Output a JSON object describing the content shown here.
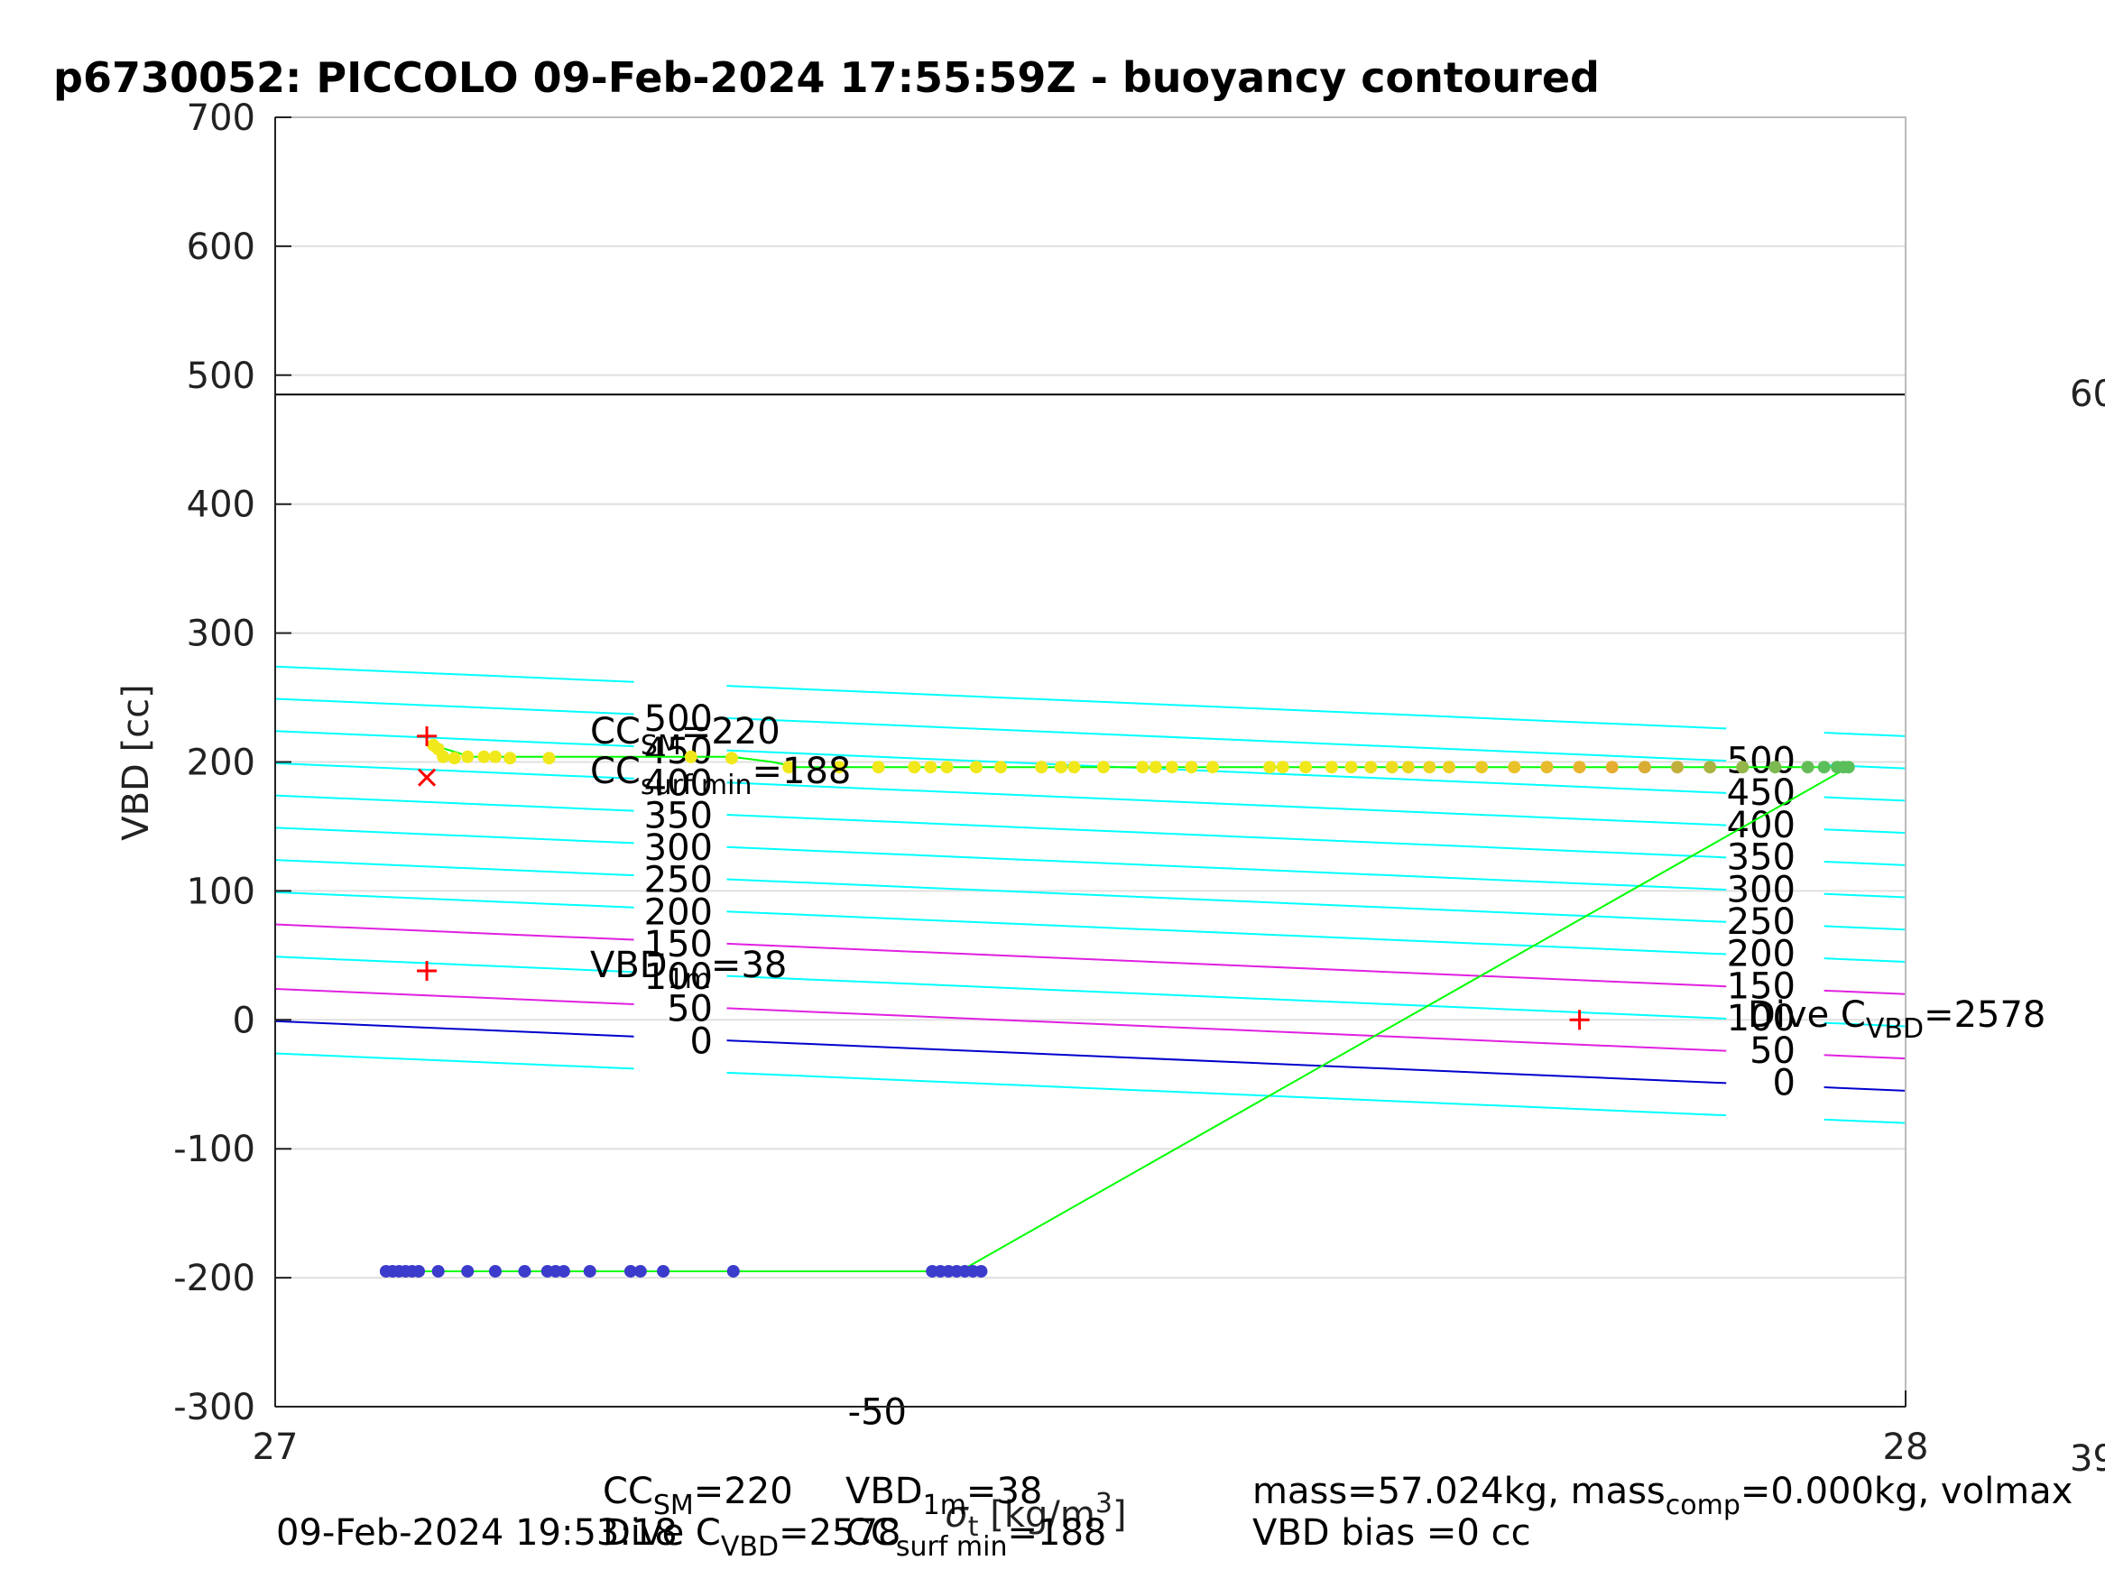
{
  "chart_data": {
    "type": "scatter",
    "title": "p6730052: PICCOLO 09-Feb-2024 17:55:59Z - buoyancy contoured",
    "ylabel": "VBD [cc]",
    "xlabel": {
      "pre": "σ",
      "sub": "t",
      "post": " [kg/m",
      "sup": "3",
      "end": "]"
    },
    "xlim": [
      27,
      28
    ],
    "ylim": [
      -300,
      700
    ],
    "xticks": [
      "27",
      "28"
    ],
    "yticks": [
      "-300",
      "-200",
      "-100",
      "0",
      "100",
      "200",
      "300",
      "400",
      "500",
      "600",
      "700"
    ],
    "grid": true,
    "colors": {
      "grid": "#e0e0e0",
      "contour": "#00ffff",
      "negative_contour": "#e020e0",
      "zero_contour": "#0000cc",
      "trace": "#00ff00",
      "marker": "#ff0000",
      "hline": "#000000"
    },
    "hline_vbd": 485,
    "contours": {
      "left_values": [
        550,
        500,
        450,
        400,
        350,
        300,
        250,
        200,
        150,
        100,
        50,
        0,
        -50
      ],
      "right_values": [
        500,
        450,
        400,
        350,
        300,
        250,
        200,
        150,
        100,
        50,
        0
      ],
      "left_labels": [
        "500",
        "450",
        "400",
        "350",
        "300",
        "250",
        "200",
        "150",
        "100",
        "50",
        "0",
        "-50"
      ],
      "right_labels": [
        "500",
        "450",
        "400",
        "350",
        "300",
        "250",
        "200",
        "150",
        "100",
        "50",
        "0"
      ]
    },
    "climb_points": {
      "x": [
        27.097,
        27.1,
        27.103,
        27.11,
        27.118,
        27.128,
        27.135,
        27.144,
        27.168,
        27.255,
        27.28,
        27.315,
        27.346,
        27.37,
        27.392,
        27.402,
        27.412,
        27.43,
        27.445,
        27.47,
        27.482,
        27.49,
        27.508,
        27.532,
        27.54,
        27.55,
        27.562,
        27.575,
        27.61,
        27.618,
        27.632,
        27.648,
        27.66,
        27.672,
        27.685,
        27.695,
        27.708,
        27.72,
        27.74,
        27.76,
        27.78,
        27.8,
        27.82,
        27.84,
        27.86,
        27.88,
        27.9,
        27.92,
        27.94,
        27.95,
        27.958,
        27.962,
        27.965
      ],
      "y": [
        213,
        210,
        204,
        203,
        204,
        204,
        204,
        203,
        203,
        204,
        203,
        196,
        196,
        196,
        196,
        196,
        196,
        196,
        196,
        196,
        196,
        196,
        196,
        196,
        196,
        196,
        196,
        196,
        196,
        196,
        196,
        196,
        196,
        196,
        196,
        196,
        196,
        196,
        196,
        196,
        196,
        196,
        196,
        196,
        196,
        196,
        196,
        196,
        196,
        196,
        196,
        196,
        196
      ]
    },
    "dive_points": {
      "x": [
        27.068,
        27.072,
        27.076,
        27.08,
        27.084,
        27.088,
        27.1,
        27.118,
        27.135,
        27.153,
        27.167,
        27.172,
        27.177,
        27.193,
        27.218,
        27.224,
        27.238,
        27.281,
        27.403,
        27.408,
        27.413,
        27.418,
        27.423,
        27.428,
        27.433
      ],
      "y": [
        -195,
        -195,
        -195,
        -195,
        -195,
        -195,
        -195,
        -195,
        -195,
        -195,
        -195,
        -195,
        -195,
        -195,
        -195,
        -195,
        -195,
        -195,
        -195,
        -195,
        -195,
        -195,
        -195,
        -195,
        -195
      ]
    },
    "trace_x": [
      27.097,
      27.12,
      27.28,
      27.305,
      27.32,
      27.965,
      27.42,
      27.066
    ],
    "trace_y": [
      213,
      204,
      204,
      200,
      196,
      196,
      -195,
      -195
    ],
    "markers": [
      {
        "symbol": "+",
        "x": 27.093,
        "y": 220
      },
      {
        "symbol": "x",
        "x": 27.093,
        "y": 188
      },
      {
        "symbol": "+",
        "x": 27.093,
        "y": 38
      },
      {
        "symbol": "+",
        "x": 27.8,
        "y": 0
      }
    ],
    "annotations": {
      "cc_sm": {
        "main": "CC",
        "sub": "SM",
        "val": "=220"
      },
      "cc_surf": {
        "main": "CC",
        "sub": "surf min",
        "val": "=188"
      },
      "vbd_1m": {
        "main": "VBD",
        "sub": "1m",
        "val": "=38"
      },
      "dive_c": {
        "main": "Dive C",
        "sub": "VBD",
        "val": "=2578"
      }
    },
    "right_edge": {
      "top": "60",
      "bottom": "39"
    },
    "footer": {
      "timestamp": "09-Feb-2024 19:53:18",
      "cc_sm": {
        "main": "CC",
        "sub": "SM",
        "val": "=220"
      },
      "dive_c": {
        "main": "Dive C",
        "sub": "VBD",
        "val": "=2578"
      },
      "vbd_1m": {
        "main": "VBD",
        "sub": "1m",
        "val": "=38"
      },
      "cc_surf": {
        "main": "CC",
        "sub": "surf min",
        "val": "=188"
      },
      "mass": {
        "pre": "mass=57.024kg, mass",
        "sub": "comp",
        "post": "=0.000kg, volmax"
      },
      "bias": "VBD bias =0 cc"
    }
  }
}
